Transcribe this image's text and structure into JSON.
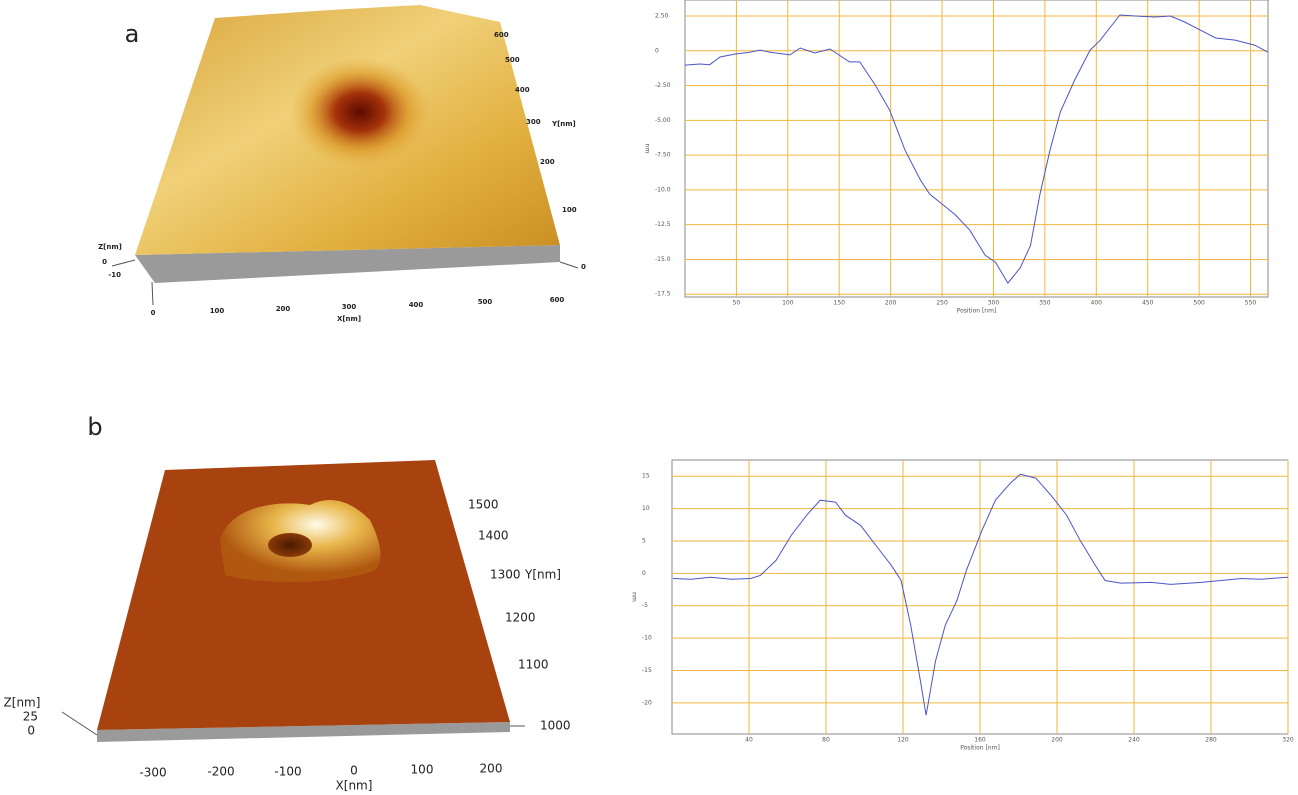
{
  "panels": [
    {
      "label": "a",
      "surface": {
        "x_label": "X[nm]",
        "x_ticks": [
          0,
          100,
          200,
          300,
          400,
          500,
          600
        ],
        "y_label": "Y[nm]",
        "y_ticks": [
          600,
          500,
          400,
          300,
          200,
          100,
          0
        ],
        "z_label": "Z[nm]",
        "z_ticks": [
          0,
          -10
        ]
      }
    },
    {
      "label": "b",
      "surface": {
        "x_label": "X[nm]",
        "x_ticks": [
          -300,
          -200,
          -100,
          0,
          100,
          200
        ],
        "y_label": "Y[nm]",
        "y_ticks": [
          1500,
          1400,
          1300,
          1200,
          1100,
          1000
        ],
        "z_label": "Z[nm]",
        "z_ticks": [
          25,
          0
        ]
      }
    }
  ],
  "chart_data": [
    {
      "type": "line",
      "xlabel": "Position [nm]",
      "ylabel": "nm",
      "grid": true,
      "grid_color": "#f3b63c",
      "xlim": [
        0,
        567
      ],
      "xticks": [
        50,
        100,
        150,
        200,
        250,
        300,
        350,
        400,
        450,
        500,
        550
      ],
      "ylim": [
        -17.7,
        3.65
      ],
      "yticks": [
        {
          "value": 2.5,
          "label": "2.50"
        },
        0,
        {
          "value": -2.5,
          "label": "-2.50"
        },
        {
          "value": -5,
          "label": "-5.00"
        },
        {
          "value": -7.5,
          "label": "-7.50"
        },
        {
          "value": -10,
          "label": "-10.0"
        },
        {
          "value": -12.5,
          "label": "-12.5"
        },
        {
          "value": -15,
          "label": "-15.0"
        },
        {
          "value": -17.5,
          "label": "-17.5"
        }
      ],
      "x": [
        0,
        14.6,
        24,
        34,
        49,
        63,
        73,
        83,
        102,
        112,
        126,
        141,
        160,
        170,
        185,
        199,
        214,
        229,
        238,
        248,
        263,
        277,
        292,
        302,
        314,
        326,
        336,
        345,
        355,
        365,
        379,
        394,
        404,
        413,
        423,
        438,
        457,
        472,
        486,
        501,
        516,
        535,
        554,
        567
      ],
      "series": [
        {
          "color": "#4a55c8",
          "values": [
            -1.03,
            -0.95,
            -1.0,
            -0.45,
            -0.23,
            -0.1,
            0.05,
            -0.1,
            -0.3,
            0.2,
            -0.16,
            0.13,
            -0.8,
            -0.8,
            -2.46,
            -4.26,
            -7.14,
            -9.3,
            -10.3,
            -10.9,
            -11.8,
            -12.9,
            -14.7,
            -15.2,
            -16.7,
            -15.6,
            -14.0,
            -10.4,
            -7.14,
            -4.4,
            -2.1,
            0.05,
            0.77,
            1.64,
            2.57,
            2.5,
            2.43,
            2.5,
            2.07,
            1.5,
            0.92,
            0.77,
            0.41,
            -0.1
          ]
        }
      ]
    },
    {
      "type": "line",
      "xlabel": "Position [nm]",
      "ylabel": "nm",
      "grid": true,
      "grid_color": "#f3b63c",
      "xlim": [
        0,
        320
      ],
      "xticks": [
        40,
        80,
        120,
        160,
        200,
        240,
        280,
        320
      ],
      "ylim": [
        -24.8,
        17.5
      ],
      "yticks": [
        15,
        10,
        5,
        0,
        -5,
        -10,
        -15,
        -20
      ],
      "x": [
        0.5,
        10,
        20,
        31,
        41,
        46,
        54,
        62,
        70,
        77,
        85,
        90,
        98,
        106,
        114,
        119,
        124,
        129,
        132,
        137,
        142,
        148,
        153,
        161,
        168,
        176,
        181,
        189,
        197,
        205,
        212,
        220,
        225,
        233,
        249,
        259,
        275,
        296,
        306,
        320
      ],
      "series": [
        {
          "color": "#4a55c8",
          "values": [
            -0.8,
            -0.9,
            -0.6,
            -0.9,
            -0.8,
            -0.3,
            2.0,
            5.9,
            9.0,
            11.3,
            11.0,
            9.0,
            7.4,
            4.3,
            1.2,
            -1.1,
            -8.0,
            -16.5,
            -21.9,
            -13.4,
            -8.0,
            -4.2,
            0.5,
            6.6,
            11.3,
            14.0,
            15.3,
            14.7,
            12.0,
            9.0,
            5.1,
            1.2,
            -1.1,
            -1.5,
            -1.4,
            -1.7,
            -1.4,
            -0.8,
            -0.9,
            -0.6
          ]
        }
      ]
    }
  ]
}
